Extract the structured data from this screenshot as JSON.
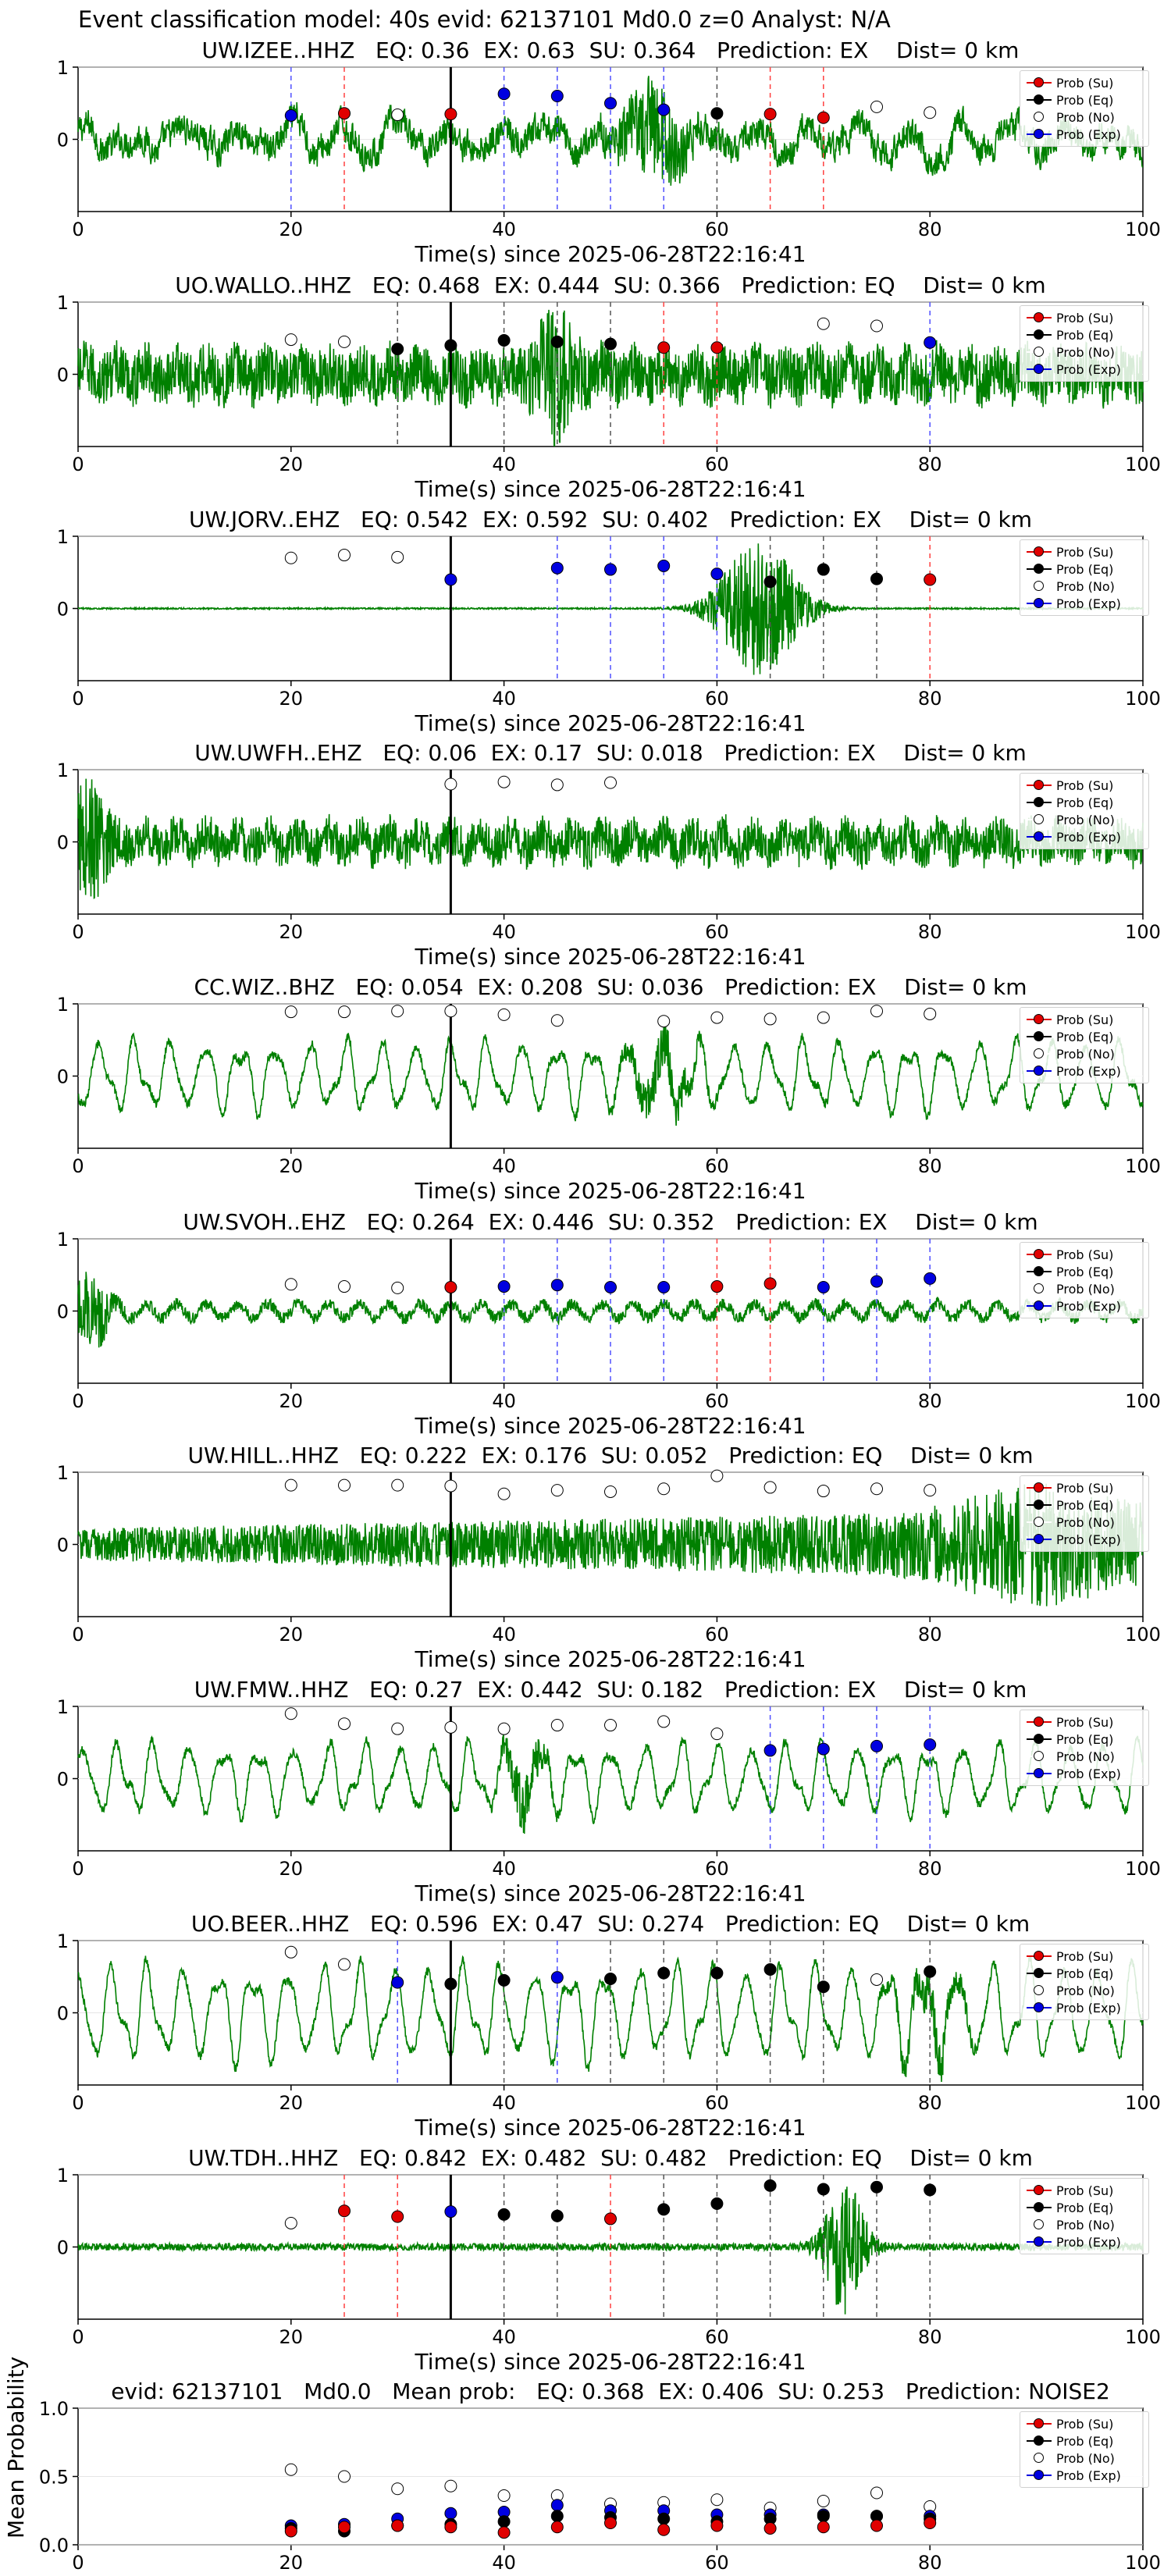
{
  "figure_title": "Event classification model: 40s evid: 62137101 Md0.0 z=0 Analyst: N/A",
  "legend": [
    {
      "label": "Prob (Su)",
      "fill": "#e00000",
      "line": "#e00000"
    },
    {
      "label": "Prob (Eq)",
      "fill": "#000000",
      "line": "#000000"
    },
    {
      "label": "Prob (No)",
      "fill": "#ffffff",
      "line": "#ffffff"
    },
    {
      "label": "Prob (Exp)",
      "fill": "#0000e0",
      "line": "#0000e0"
    }
  ],
  "colors": {
    "waveform": "#008000",
    "su": "#e00000",
    "eq": "#000000",
    "exp": "#0000e0",
    "no": "#ffffff",
    "pick_line": "#000000"
  },
  "chart_data": [
    {
      "type": "line",
      "station": "UW.IZEE..HHZ",
      "title": "UW.IZEE..HHZ   EQ: 0.36  EX: 0.63  SU: 0.364   Prediction: EX    Dist= 0 km",
      "xlabel": "Time(s) since 2025-06-28T22:16:41",
      "xlim": [
        0,
        100
      ],
      "ylim": [
        -1,
        1
      ],
      "xticks": [
        0,
        20,
        40,
        60,
        80,
        100
      ],
      "yticks": [
        0,
        1
      ],
      "pick_time": 35,
      "waveform": {
        "amplitude": 0.38,
        "style": "mixed",
        "burst_center": 54,
        "burst_width": 3,
        "burst_amp": 0.55
      },
      "points": [
        {
          "t": 20,
          "cls": "exp",
          "p": 0.33
        },
        {
          "t": 25,
          "cls": "su",
          "p": 0.36
        },
        {
          "t": 30,
          "cls": "no",
          "p": 0.34
        },
        {
          "t": 35,
          "cls": "su",
          "p": 0.35
        },
        {
          "t": 40,
          "cls": "exp",
          "p": 0.63
        },
        {
          "t": 45,
          "cls": "exp",
          "p": 0.6
        },
        {
          "t": 50,
          "cls": "exp",
          "p": 0.5
        },
        {
          "t": 55,
          "cls": "exp",
          "p": 0.41
        },
        {
          "t": 60,
          "cls": "eq",
          "p": 0.36
        },
        {
          "t": 65,
          "cls": "su",
          "p": 0.35
        },
        {
          "t": 70,
          "cls": "su",
          "p": 0.3
        },
        {
          "t": 75,
          "cls": "no",
          "p": 0.45
        },
        {
          "t": 80,
          "cls": "no",
          "p": 0.37
        }
      ]
    },
    {
      "type": "line",
      "station": "UO.WALLO..HHZ",
      "title": "UO.WALLO..HHZ   EQ: 0.468  EX: 0.444  SU: 0.366   Prediction: EQ    Dist= 0 km",
      "xlabel": "Time(s) since 2025-06-28T22:16:41",
      "xlim": [
        0,
        100
      ],
      "ylim": [
        -1,
        1
      ],
      "xticks": [
        0,
        20,
        40,
        60,
        80,
        100
      ],
      "yticks": [
        0,
        1
      ],
      "pick_time": 35,
      "waveform": {
        "amplitude": 0.42,
        "style": "noisy",
        "burst_center": 45,
        "burst_width": 2,
        "burst_amp": 0.6
      },
      "points": [
        {
          "t": 20,
          "cls": "no",
          "p": 0.48
        },
        {
          "t": 25,
          "cls": "no",
          "p": 0.45
        },
        {
          "t": 30,
          "cls": "eq",
          "p": 0.35
        },
        {
          "t": 35,
          "cls": "eq",
          "p": 0.4
        },
        {
          "t": 40,
          "cls": "eq",
          "p": 0.47
        },
        {
          "t": 45,
          "cls": "eq",
          "p": 0.45
        },
        {
          "t": 50,
          "cls": "eq",
          "p": 0.42
        },
        {
          "t": 55,
          "cls": "su",
          "p": 0.37
        },
        {
          "t": 60,
          "cls": "su",
          "p": 0.37
        },
        {
          "t": 70,
          "cls": "no",
          "p": 0.7
        },
        {
          "t": 75,
          "cls": "no",
          "p": 0.67
        },
        {
          "t": 80,
          "cls": "exp",
          "p": 0.44
        }
      ]
    },
    {
      "type": "line",
      "station": "UW.JORV..EHZ",
      "title": "UW.JORV..EHZ   EQ: 0.542  EX: 0.592  SU: 0.402   Prediction: EX    Dist= 0 km",
      "xlabel": "Time(s) since 2025-06-28T22:16:41",
      "xlim": [
        0,
        100
      ],
      "ylim": [
        -1,
        1
      ],
      "xticks": [
        0,
        20,
        40,
        60,
        80,
        100
      ],
      "yticks": [
        0,
        1
      ],
      "pick_time": 35,
      "waveform": {
        "amplitude": 0.01,
        "style": "quiet",
        "burst_center": 64,
        "burst_width": 4,
        "burst_amp": 0.95
      },
      "points": [
        {
          "t": 20,
          "cls": "no",
          "p": 0.7
        },
        {
          "t": 25,
          "cls": "no",
          "p": 0.74
        },
        {
          "t": 30,
          "cls": "no",
          "p": 0.71
        },
        {
          "t": 35,
          "cls": "exp",
          "p": 0.4
        },
        {
          "t": 45,
          "cls": "exp",
          "p": 0.56
        },
        {
          "t": 50,
          "cls": "exp",
          "p": 0.54
        },
        {
          "t": 55,
          "cls": "exp",
          "p": 0.59
        },
        {
          "t": 60,
          "cls": "exp",
          "p": 0.48
        },
        {
          "t": 65,
          "cls": "eq",
          "p": 0.37
        },
        {
          "t": 70,
          "cls": "eq",
          "p": 0.54
        },
        {
          "t": 75,
          "cls": "eq",
          "p": 0.41
        },
        {
          "t": 80,
          "cls": "su",
          "p": 0.4
        }
      ]
    },
    {
      "type": "line",
      "station": "UW.UWFH..EHZ",
      "title": "UW.UWFH..EHZ   EQ: 0.06  EX: 0.17  SU: 0.018   Prediction: EX    Dist= 0 km",
      "xlabel": "Time(s) since 2025-06-28T22:16:41",
      "xlim": [
        0,
        100
      ],
      "ylim": [
        -1,
        1
      ],
      "xticks": [
        0,
        20,
        40,
        60,
        80,
        100
      ],
      "yticks": [
        0,
        1
      ],
      "pick_time": 35,
      "waveform": {
        "amplitude": 0.32,
        "style": "noisy",
        "burst_center": 1,
        "burst_width": 2,
        "burst_amp": 0.6
      },
      "points": [
        {
          "t": 35,
          "cls": "no",
          "p": 0.8
        },
        {
          "t": 40,
          "cls": "no",
          "p": 0.83
        },
        {
          "t": 45,
          "cls": "no",
          "p": 0.79
        },
        {
          "t": 50,
          "cls": "no",
          "p": 0.82
        }
      ]
    },
    {
      "type": "line",
      "station": "CC.WIZ..BHZ",
      "title": "CC.WIZ..BHZ   EQ: 0.054  EX: 0.208  SU: 0.036   Prediction: EX    Dist= 0 km",
      "xlabel": "Time(s) since 2025-06-28T22:16:41",
      "xlim": [
        0,
        100
      ],
      "ylim": [
        -1,
        1
      ],
      "xticks": [
        0,
        20,
        40,
        60,
        80,
        100
      ],
      "yticks": [
        0,
        1
      ],
      "pick_time": 35,
      "waveform": {
        "amplitude": 0.55,
        "style": "oscillating",
        "burst_center": 55,
        "burst_width": 3,
        "burst_amp": 0.3
      },
      "points": [
        {
          "t": 20,
          "cls": "no",
          "p": 0.89
        },
        {
          "t": 25,
          "cls": "no",
          "p": 0.89
        },
        {
          "t": 30,
          "cls": "no",
          "p": 0.9
        },
        {
          "t": 35,
          "cls": "no",
          "p": 0.9
        },
        {
          "t": 40,
          "cls": "no",
          "p": 0.85
        },
        {
          "t": 45,
          "cls": "no",
          "p": 0.77
        },
        {
          "t": 55,
          "cls": "no",
          "p": 0.76
        },
        {
          "t": 60,
          "cls": "no",
          "p": 0.81
        },
        {
          "t": 65,
          "cls": "no",
          "p": 0.79
        },
        {
          "t": 70,
          "cls": "no",
          "p": 0.81
        },
        {
          "t": 75,
          "cls": "no",
          "p": 0.9
        },
        {
          "t": 80,
          "cls": "no",
          "p": 0.86
        }
      ]
    },
    {
      "type": "line",
      "station": "UW.SVOH..EHZ",
      "title": "UW.SVOH..EHZ   EQ: 0.264  EX: 0.446  SU: 0.352   Prediction: EX    Dist= 0 km",
      "xlabel": "Time(s) since 2025-06-28T22:16:41",
      "xlim": [
        0,
        100
      ],
      "ylim": [
        -1,
        1
      ],
      "xticks": [
        0,
        20,
        40,
        60,
        80,
        100
      ],
      "yticks": [
        0,
        1
      ],
      "pick_time": 35,
      "waveform": {
        "amplitude": 0.09,
        "style": "noisy",
        "burst_center": 1,
        "burst_width": 2,
        "burst_amp": 0.45
      },
      "points": [
        {
          "t": 20,
          "cls": "no",
          "p": 0.37
        },
        {
          "t": 25,
          "cls": "no",
          "p": 0.34
        },
        {
          "t": 30,
          "cls": "no",
          "p": 0.32
        },
        {
          "t": 35,
          "cls": "su",
          "p": 0.33
        },
        {
          "t": 40,
          "cls": "exp",
          "p": 0.34
        },
        {
          "t": 45,
          "cls": "exp",
          "p": 0.36
        },
        {
          "t": 50,
          "cls": "exp",
          "p": 0.33
        },
        {
          "t": 55,
          "cls": "exp",
          "p": 0.33
        },
        {
          "t": 60,
          "cls": "su",
          "p": 0.34
        },
        {
          "t": 65,
          "cls": "su",
          "p": 0.38
        },
        {
          "t": 70,
          "cls": "exp",
          "p": 0.33
        },
        {
          "t": 75,
          "cls": "exp",
          "p": 0.41
        },
        {
          "t": 80,
          "cls": "exp",
          "p": 0.45
        }
      ]
    },
    {
      "type": "line",
      "station": "UW.HILL..HHZ",
      "title": "UW.HILL..HHZ   EQ: 0.222  EX: 0.176  SU: 0.052   Prediction: EQ    Dist= 0 km",
      "xlabel": "Time(s) since 2025-06-28T22:16:41",
      "xlim": [
        0,
        100
      ],
      "ylim": [
        -1,
        1
      ],
      "xticks": [
        0,
        20,
        40,
        60,
        80,
        100
      ],
      "yticks": [
        0,
        1
      ],
      "pick_time": 35,
      "waveform": {
        "amplitude": 0.45,
        "style": "growing",
        "burst_center": 90,
        "burst_width": 8,
        "burst_amp": 0.4
      },
      "points": [
        {
          "t": 20,
          "cls": "no",
          "p": 0.82
        },
        {
          "t": 25,
          "cls": "no",
          "p": 0.82
        },
        {
          "t": 30,
          "cls": "no",
          "p": 0.82
        },
        {
          "t": 35,
          "cls": "no",
          "p": 0.81
        },
        {
          "t": 40,
          "cls": "no",
          "p": 0.7
        },
        {
          "t": 45,
          "cls": "no",
          "p": 0.75
        },
        {
          "t": 50,
          "cls": "no",
          "p": 0.73
        },
        {
          "t": 55,
          "cls": "no",
          "p": 0.77
        },
        {
          "t": 60,
          "cls": "no",
          "p": 0.95
        },
        {
          "t": 65,
          "cls": "no",
          "p": 0.79
        },
        {
          "t": 70,
          "cls": "no",
          "p": 0.74
        },
        {
          "t": 75,
          "cls": "no",
          "p": 0.77
        },
        {
          "t": 80,
          "cls": "no",
          "p": 0.75
        }
      ]
    },
    {
      "type": "line",
      "station": "UW.FMW..HHZ",
      "title": "UW.FMW..HHZ   EQ: 0.27  EX: 0.442  SU: 0.182   Prediction: EX    Dist= 0 km",
      "xlabel": "Time(s) since 2025-06-28T22:16:41",
      "xlim": [
        0,
        100
      ],
      "ylim": [
        -1,
        1
      ],
      "xticks": [
        0,
        20,
        40,
        60,
        80,
        100
      ],
      "yticks": [
        0,
        1
      ],
      "pick_time": 35,
      "waveform": {
        "amplitude": 0.55,
        "style": "oscillating",
        "burst_center": 42,
        "burst_width": 2,
        "burst_amp": 0.35
      },
      "points": [
        {
          "t": 20,
          "cls": "no",
          "p": 0.9
        },
        {
          "t": 25,
          "cls": "no",
          "p": 0.76
        },
        {
          "t": 30,
          "cls": "no",
          "p": 0.69
        },
        {
          "t": 35,
          "cls": "no",
          "p": 0.71
        },
        {
          "t": 40,
          "cls": "no",
          "p": 0.69
        },
        {
          "t": 45,
          "cls": "no",
          "p": 0.74
        },
        {
          "t": 50,
          "cls": "no",
          "p": 0.74
        },
        {
          "t": 55,
          "cls": "no",
          "p": 0.79
        },
        {
          "t": 60,
          "cls": "no",
          "p": 0.62
        },
        {
          "t": 65,
          "cls": "exp",
          "p": 0.39
        },
        {
          "t": 70,
          "cls": "exp",
          "p": 0.41
        },
        {
          "t": 75,
          "cls": "exp",
          "p": 0.45
        },
        {
          "t": 80,
          "cls": "exp",
          "p": 0.47
        }
      ]
    },
    {
      "type": "line",
      "station": "UO.BEER..HHZ",
      "title": "UO.BEER..HHZ   EQ: 0.596  EX: 0.47  SU: 0.274   Prediction: EQ    Dist= 0 km",
      "xlabel": "Time(s) since 2025-06-28T22:16:41",
      "xlim": [
        0,
        100
      ],
      "ylim": [
        -1,
        1
      ],
      "xticks": [
        0,
        20,
        40,
        60,
        80,
        100
      ],
      "yticks": [
        0,
        1
      ],
      "pick_time": 35,
      "waveform": {
        "amplitude": 0.75,
        "style": "oscillating",
        "burst_center": 80,
        "burst_width": 3,
        "burst_amp": 0.25
      },
      "points": [
        {
          "t": 20,
          "cls": "no",
          "p": 0.84
        },
        {
          "t": 25,
          "cls": "no",
          "p": 0.67
        },
        {
          "t": 30,
          "cls": "exp",
          "p": 0.42
        },
        {
          "t": 35,
          "cls": "eq",
          "p": 0.4
        },
        {
          "t": 40,
          "cls": "eq",
          "p": 0.45
        },
        {
          "t": 45,
          "cls": "exp",
          "p": 0.49
        },
        {
          "t": 50,
          "cls": "eq",
          "p": 0.47
        },
        {
          "t": 55,
          "cls": "eq",
          "p": 0.55
        },
        {
          "t": 60,
          "cls": "eq",
          "p": 0.55
        },
        {
          "t": 65,
          "cls": "eq",
          "p": 0.6
        },
        {
          "t": 70,
          "cls": "eq",
          "p": 0.36
        },
        {
          "t": 75,
          "cls": "no",
          "p": 0.46
        },
        {
          "t": 80,
          "cls": "eq",
          "p": 0.57
        }
      ]
    },
    {
      "type": "line",
      "station": "UW.TDH..HHZ",
      "title": "UW.TDH..HHZ   EQ: 0.842  EX: 0.482  SU: 0.482   Prediction: EQ    Dist= 0 km",
      "xlabel": "Time(s) since 2025-06-28T22:16:41",
      "xlim": [
        0,
        100
      ],
      "ylim": [
        -1,
        1
      ],
      "xticks": [
        0,
        20,
        40,
        60,
        80,
        100
      ],
      "yticks": [
        0,
        1
      ],
      "pick_time": 35,
      "waveform": {
        "amplitude": 0.05,
        "style": "quiet",
        "burst_center": 72,
        "burst_width": 2,
        "burst_amp": 0.9
      },
      "points": [
        {
          "t": 20,
          "cls": "no",
          "p": 0.33
        },
        {
          "t": 25,
          "cls": "su",
          "p": 0.5
        },
        {
          "t": 30,
          "cls": "su",
          "p": 0.42
        },
        {
          "t": 35,
          "cls": "exp",
          "p": 0.49
        },
        {
          "t": 40,
          "cls": "eq",
          "p": 0.45
        },
        {
          "t": 45,
          "cls": "eq",
          "p": 0.43
        },
        {
          "t": 50,
          "cls": "su",
          "p": 0.39
        },
        {
          "t": 55,
          "cls": "eq",
          "p": 0.52
        },
        {
          "t": 60,
          "cls": "eq",
          "p": 0.6
        },
        {
          "t": 65,
          "cls": "eq",
          "p": 0.85
        },
        {
          "t": 70,
          "cls": "eq",
          "p": 0.8
        },
        {
          "t": 75,
          "cls": "eq",
          "p": 0.83
        },
        {
          "t": 80,
          "cls": "eq",
          "p": 0.79
        }
      ]
    },
    {
      "type": "scatter",
      "title": "evid: 62137101   Md0.0   Mean prob:   EQ: 0.368  EX: 0.406  SU: 0.253   Prediction: NOISE2",
      "ylabel": "Mean Probability",
      "xlabel": "",
      "xlim": [
        0,
        100
      ],
      "ylim": [
        0,
        1
      ],
      "xticks": [
        0,
        20,
        40,
        60,
        80,
        100
      ],
      "yticks": [
        0.0,
        0.5,
        1.0
      ],
      "ytick_labels": [
        "0.0",
        "0.5",
        "1.0"
      ],
      "times": [
        20,
        25,
        30,
        35,
        40,
        45,
        50,
        55,
        60,
        65,
        70,
        75,
        80
      ],
      "series": [
        {
          "name": "Prob (No)",
          "cls": "no",
          "values": [
            0.55,
            0.5,
            0.41,
            0.43,
            0.36,
            0.36,
            0.3,
            0.31,
            0.33,
            0.27,
            0.32,
            0.38,
            0.28
          ]
        },
        {
          "name": "Prob (Exp)",
          "cls": "exp",
          "values": [
            0.14,
            0.15,
            0.19,
            0.23,
            0.24,
            0.29,
            0.25,
            0.25,
            0.22,
            0.22,
            0.22,
            0.21,
            0.21
          ]
        },
        {
          "name": "Prob (Eq)",
          "cls": "eq",
          "values": [
            0.12,
            0.1,
            0.14,
            0.15,
            0.17,
            0.21,
            0.2,
            0.19,
            0.17,
            0.19,
            0.21,
            0.21,
            0.19
          ]
        },
        {
          "name": "Prob (Su)",
          "cls": "su",
          "values": [
            0.1,
            0.13,
            0.14,
            0.13,
            0.09,
            0.13,
            0.16,
            0.11,
            0.14,
            0.12,
            0.13,
            0.14,
            0.16
          ]
        }
      ]
    }
  ]
}
